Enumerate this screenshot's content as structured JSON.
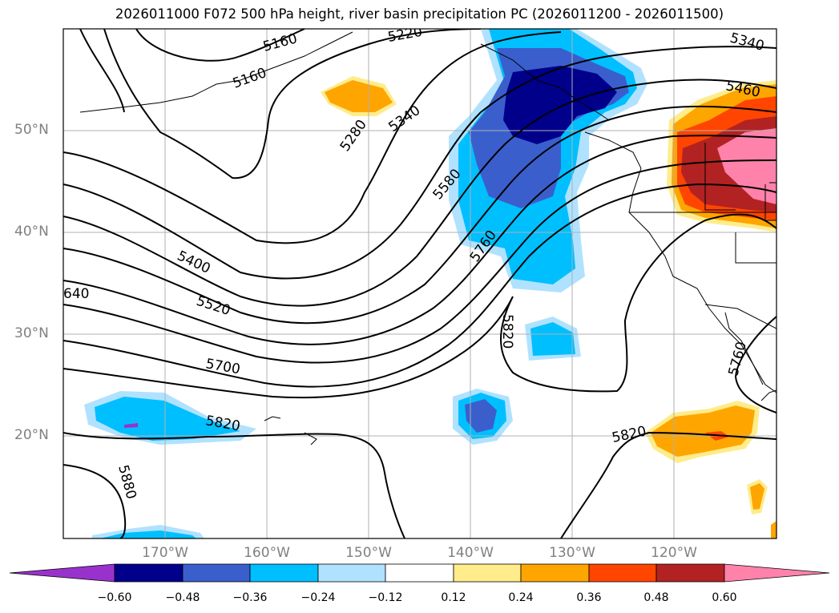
{
  "title": "2026011000 F072 500 hPa height, river basin precipitation PC (2026011200 - 2026011500)",
  "latitude_labels": [
    "50°N",
    "40°N",
    "30°N",
    "20°N"
  ],
  "longitude_labels": [
    "170°W",
    "160°W",
    "150°W",
    "140°W",
    "130°W",
    "120°W"
  ],
  "contour_labels": [
    "5160",
    "5160",
    "5220",
    "5340",
    "5280",
    "5340",
    "5460",
    "5580",
    "5760",
    "5400",
    "5520",
    "640",
    "5700",
    "5820",
    "5820",
    "5820",
    "5880",
    "5760"
  ],
  "colorbar": {
    "ticks": [
      "−0.60",
      "−0.48",
      "−0.36",
      "−0.24",
      "−0.12",
      "0.12",
      "0.24",
      "0.36",
      "0.48",
      "0.60"
    ],
    "colors": [
      "#9932cc",
      "#00008b",
      "#3a5fcd",
      "#00bfff",
      "#b0e2ff",
      "#ffffff",
      "#ffec8b",
      "#ffa500",
      "#ff4500",
      "#b22222",
      "#ff82ab"
    ]
  },
  "colors": {
    "gridline": "#b0b0b0",
    "contour": "#000000",
    "coastline": "#000000"
  }
}
